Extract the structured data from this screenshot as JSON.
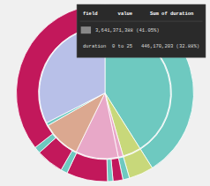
{
  "chart_data": {
    "type": "pie",
    "series": [
      {
        "type": "donut",
        "values": [
          41.05,
          4.5,
          1.2,
          1.8,
          1.0,
          7.5,
          1.2,
          5.0,
          1.2,
          35.55
        ],
        "colors": [
          "#6ec9c0",
          "#c8d87a",
          "#6ec9c0",
          "#c2185b",
          "#6ec9c0",
          "#c2185b",
          "#6ec9c0",
          "#c2185b",
          "#6ec9c0",
          "#c2185b"
        ]
      },
      {
        "type": "pie",
        "values": [
          41.05,
          4.5,
          1.2,
          10.5,
          9.5,
          0.75,
          32.5
        ],
        "colors": [
          "#6ec9c0",
          "#c8d87a",
          "#e8a8c8",
          "#e8a8c8",
          "#dba890",
          "#6ec9c0",
          "#b8c0e8"
        ]
      }
    ],
    "annotations": [
      "field       value      Sum of duration",
      "3,641,371,388 (41.05%)",
      "duration  0 to 25   446,170,203 (32.88%)"
    ]
  }
}
